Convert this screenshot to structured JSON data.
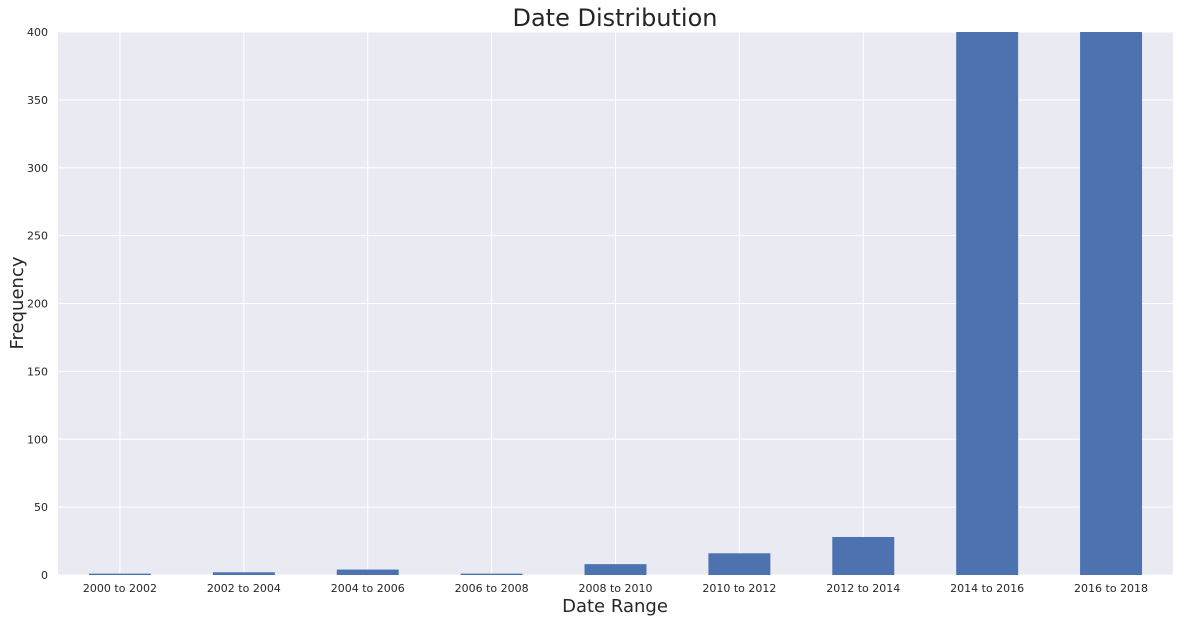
{
  "chart_data": {
    "type": "bar",
    "title": "Date Distribution",
    "xlabel": "Date Range",
    "ylabel": "Frequency",
    "categories": [
      "2000 to 2002",
      "2002 to 2004",
      "2004 to 2006",
      "2006 to 2008",
      "2008 to 2010",
      "2010 to 2012",
      "2012 to 2014",
      "2014 to 2016",
      "2016 to 2018"
    ],
    "values": [
      1,
      2,
      4,
      1,
      8,
      16,
      28,
      400,
      400
    ],
    "ylim": [
      0,
      400
    ],
    "yticks": [
      0,
      50,
      100,
      150,
      200,
      250,
      300,
      350,
      400
    ],
    "grid": true,
    "legend": "none",
    "colors": {
      "bar": "#4c72b0",
      "plot_bg": "#eaeaf2",
      "grid": "#ffffff",
      "text": "#262626"
    }
  }
}
